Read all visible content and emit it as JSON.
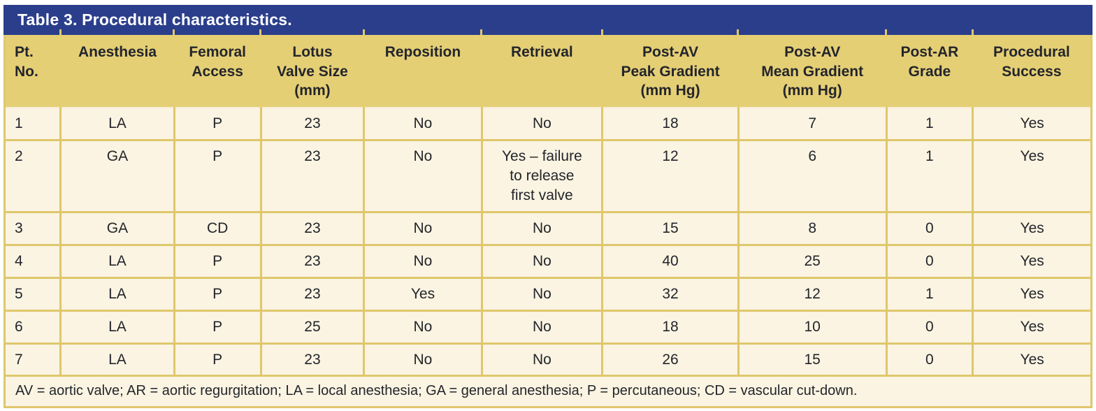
{
  "table": {
    "title": "Table 3. Procedural characteristics.",
    "columns": [
      "Pt.\nNo.",
      "Anesthesia",
      "Femoral\nAccess",
      "Lotus\nValve Size\n(mm)",
      "Reposition",
      "Retrieval",
      "Post-AV\nPeak Gradient\n(mm Hg)",
      "Post-AV\nMean Gradient\n(mm Hg)",
      "Post-AR\nGrade",
      "Procedural\nSuccess"
    ],
    "rows": [
      [
        "1",
        "LA",
        "P",
        "23",
        "No",
        "No",
        "18",
        "7",
        "1",
        "Yes"
      ],
      [
        "2",
        "GA",
        "P",
        "23",
        "No",
        "Yes – failure\nto release\nfirst valve",
        "12",
        "6",
        "1",
        "Yes"
      ],
      [
        "3",
        "GA",
        "CD",
        "23",
        "No",
        "No",
        "15",
        "8",
        "0",
        "Yes"
      ],
      [
        "4",
        "LA",
        "P",
        "23",
        "No",
        "No",
        "40",
        "25",
        "0",
        "Yes"
      ],
      [
        "5",
        "LA",
        "P",
        "23",
        "Yes",
        "No",
        "32",
        "12",
        "1",
        "Yes"
      ],
      [
        "6",
        "LA",
        "P",
        "25",
        "No",
        "No",
        "18",
        "10",
        "0",
        "Yes"
      ],
      [
        "7",
        "LA",
        "P",
        "23",
        "No",
        "No",
        "26",
        "15",
        "0",
        "Yes"
      ]
    ],
    "footnote": "AV = aortic valve; AR = aortic regurgitation; LA = local anesthesia; GA = general anesthesia; P = percutaneous; CD = vascular cut-down."
  },
  "colors": {
    "title_bar_bg": "#2b3e8c",
    "title_text": "#ffffff",
    "header_bg": "#e5cf75",
    "row_bg": "#fbf4e2",
    "grid": "#dfc76c",
    "text": "#23252b"
  }
}
